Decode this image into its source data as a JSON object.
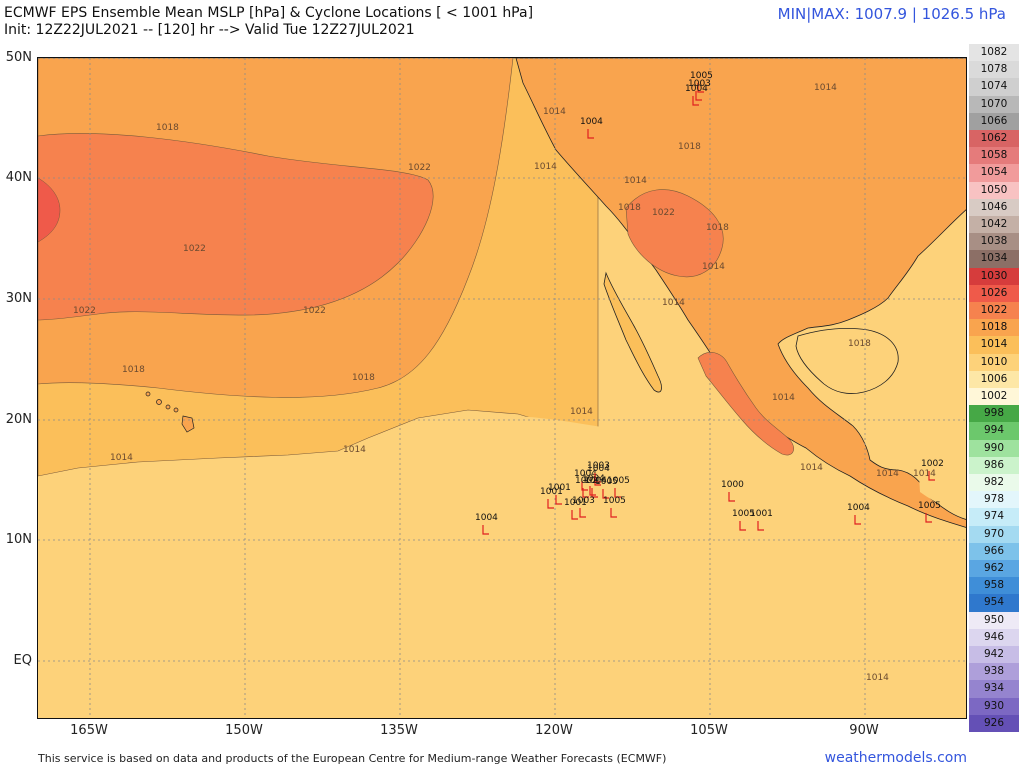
{
  "header": {
    "line1": "ECMWF EPS Ensemble Mean MSLP [hPa] & Cyclone Locations [ < 1001 hPa]",
    "line2": "Init: 12Z22JUL2021 -- [120] hr --> Valid Tue 12Z27JUL2021",
    "minmax": "MIN|MAX: 1007.9 | 1026.5 hPa"
  },
  "lat_labels": [
    "50N",
    "40N",
    "30N",
    "20N",
    "10N",
    "EQ"
  ],
  "lon_labels": [
    "165W",
    "150W",
    "135W",
    "120W",
    "105W",
    "90W"
  ],
  "legend": [
    {
      "v": "1082",
      "c": "#e4e4e4"
    },
    {
      "v": "1078",
      "c": "#dadada"
    },
    {
      "v": "1074",
      "c": "#cfcfcf"
    },
    {
      "v": "1070",
      "c": "#b8b8b8"
    },
    {
      "v": "1066",
      "c": "#a0a0a0"
    },
    {
      "v": "1062",
      "c": "#d86464"
    },
    {
      "v": "1058",
      "c": "#e57b7b"
    },
    {
      "v": "1054",
      "c": "#f19b9b"
    },
    {
      "v": "1050",
      "c": "#f8c2c2"
    },
    {
      "v": "1046",
      "c": "#d8cbc4"
    },
    {
      "v": "1042",
      "c": "#c4b0a6"
    },
    {
      "v": "1038",
      "c": "#a88f85"
    },
    {
      "v": "1034",
      "c": "#8c6f66"
    },
    {
      "v": "1030",
      "c": "#d63c3c"
    },
    {
      "v": "1026",
      "c": "#ef5a4a"
    },
    {
      "v": "1022",
      "c": "#f6824e"
    },
    {
      "v": "1018",
      "c": "#f9a44e"
    },
    {
      "v": "1014",
      "c": "#fbbf5a"
    },
    {
      "v": "1010",
      "c": "#fdd27a"
    },
    {
      "v": "1006",
      "c": "#fde7a6"
    },
    {
      "v": "1002",
      "c": "#fff7d8"
    },
    {
      "v": "998",
      "c": "#46a846"
    },
    {
      "v": "994",
      "c": "#6cc86c"
    },
    {
      "v": "990",
      "c": "#9ee29e"
    },
    {
      "v": "986",
      "c": "#cbf3cb"
    },
    {
      "v": "982",
      "c": "#eafaea"
    },
    {
      "v": "978",
      "c": "#e3f6fb"
    },
    {
      "v": "974",
      "c": "#c6ecf8"
    },
    {
      "v": "970",
      "c": "#a4daf1"
    },
    {
      "v": "966",
      "c": "#7dc2ea"
    },
    {
      "v": "962",
      "c": "#5aa6e2"
    },
    {
      "v": "958",
      "c": "#3f8ed8"
    },
    {
      "v": "954",
      "c": "#2f78cd"
    },
    {
      "v": "950",
      "c": "#eeeaf6"
    },
    {
      "v": "946",
      "c": "#dcd6ef"
    },
    {
      "v": "942",
      "c": "#c7bde6"
    },
    {
      "v": "938",
      "c": "#ae9fda"
    },
    {
      "v": "934",
      "c": "#9584cf"
    },
    {
      "v": "930",
      "c": "#7c68c3"
    },
    {
      "v": "926",
      "c": "#6450b6"
    }
  ],
  "contour_labels": [
    {
      "t": "1018"
    },
    {
      "t": "1022"
    },
    {
      "t": "1022"
    },
    {
      "t": "1022"
    },
    {
      "t": "1022"
    },
    {
      "t": "1018"
    },
    {
      "t": "1018"
    },
    {
      "t": "1014"
    },
    {
      "t": "1014"
    },
    {
      "t": "1014"
    },
    {
      "t": "1014"
    },
    {
      "t": "1014"
    },
    {
      "t": "1014"
    },
    {
      "t": "1018"
    },
    {
      "t": "1018"
    },
    {
      "t": "1022"
    },
    {
      "t": "1018"
    },
    {
      "t": "1014"
    },
    {
      "t": "1014"
    },
    {
      "t": "1014"
    },
    {
      "t": "1018"
    },
    {
      "t": "1014"
    },
    {
      "t": "1014"
    },
    {
      "t": "1014"
    },
    {
      "t": "1014"
    },
    {
      "t": "1014"
    }
  ],
  "cyclones": [
    {
      "t": "1005"
    },
    {
      "t": "1003"
    },
    {
      "t": "1004"
    },
    {
      "t": "1004"
    },
    {
      "t": "1001"
    },
    {
      "t": "1004"
    },
    {
      "t": "1001"
    },
    {
      "t": "1005"
    },
    {
      "t": "1004"
    },
    {
      "t": "1003"
    },
    {
      "t": "1004"
    },
    {
      "t": "1002"
    },
    {
      "t": "1004"
    },
    {
      "t": "1005"
    },
    {
      "t": "1001"
    },
    {
      "t": "1005"
    },
    {
      "t": "1003"
    },
    {
      "t": "1000"
    },
    {
      "t": "1005"
    },
    {
      "t": "1001"
    },
    {
      "t": "1004"
    },
    {
      "t": "1002"
    },
    {
      "t": "1005"
    },
    {
      "t": "1004"
    }
  ],
  "footer": "This service is based on data and products of the European Centre for Medium-range Weather Forecasts (ECMWF)",
  "brand": "weathermodels.com"
}
